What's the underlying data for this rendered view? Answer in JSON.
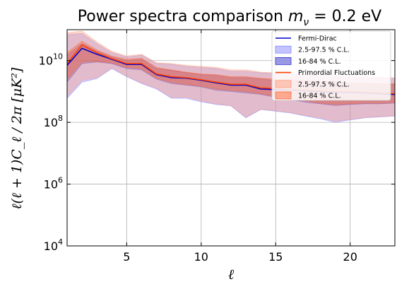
{
  "chart_data": {
    "type": "area",
    "title_prefix": "Power spectra comparison ",
    "title_math": {
      "symbol": "m",
      "subscript": "ν",
      "rest": " = 0.2 eV"
    },
    "xlabel": "ℓ",
    "ylabel": "ℓ(ℓ + 1)C_ℓ / 2π [μK²]",
    "x_scale": "linear",
    "y_scale": "log",
    "xlim": [
      1,
      23
    ],
    "ylim": [
      10000,
      100000000000
    ],
    "x_ticks": [
      5,
      10,
      15,
      20
    ],
    "x_tick_labels": [
      "5",
      "10",
      "15",
      "20"
    ],
    "y_ticks": [
      10000,
      1000000,
      100000000,
      10000000000
    ],
    "y_tick_labels": [
      {
        "base": "10",
        "exp": "4"
      },
      {
        "base": "10",
        "exp": "6"
      },
      {
        "base": "10",
        "exp": "8"
      },
      {
        "base": "10",
        "exp": "10"
      }
    ],
    "grid": true,
    "legend_position": "top-right",
    "x": [
      1,
      2,
      3,
      4,
      5,
      6,
      7,
      8,
      9,
      10,
      11,
      12,
      13,
      14,
      15,
      16,
      17,
      18,
      19,
      20,
      21,
      22,
      23
    ],
    "series": [
      {
        "name": "Fermi-Dirac",
        "color": "#0000cc",
        "line": [
          7000000000.0,
          25000000000.0,
          16000000000.0,
          11000000000.0,
          7500000000.0,
          7500000000.0,
          3500000000.0,
          2800000000.0,
          2700000000.0,
          2300000000.0,
          1900000000.0,
          1600000000.0,
          1600000000.0,
          1200000000.0,
          1150000000.0,
          1100000000.0,
          1050000000.0,
          1000000000.0,
          950000000.0,
          950000000.0,
          900000000.0,
          850000000.0,
          800000000.0
        ],
        "bands": [
          {
            "label": "2.5-97.5 % C.L.",
            "color": "#8888ff",
            "low": [
              600000000.0,
              2000000000.0,
              2600000000.0,
              5500000000.0,
              3000000000.0,
              1800000000.0,
              1200000000.0,
              600000000.0,
              600000000.0,
              460000000.0,
              380000000.0,
              340000000.0,
              140000000.0,
              260000000.0,
              230000000.0,
              200000000.0,
              160000000.0,
              130000000.0,
              100000000.0,
              120000000.0,
              140000000.0,
              150000000.0,
              160000000.0
            ],
            "high": [
              70000000000.0,
              75000000000.0,
              35000000000.0,
              18000000000.0,
              13000000000.0,
              15000000000.0,
              8000000000.0,
              7500000000.0,
              6500000000.0,
              6000000000.0,
              5500000000.0,
              4500000000.0,
              4500000000.0,
              4000000000.0,
              3800000000.0,
              3600000000.0,
              3300000000.0,
              3000000000.0,
              3000000000.0,
              2800000000.0,
              2800000000.0,
              2700000000.0,
              2600000000.0
            ]
          },
          {
            "label": "16-84 % C.L.",
            "color": "#3333cc",
            "low": [
              2000000000.0,
              8000000000.0,
              9000000000.0,
              8000000000.0,
              5500000000.0,
              5000000000.0,
              2500000000.0,
              1800000000.0,
              1600000000.0,
              1400000000.0,
              1100000000.0,
              1000000000.0,
              900000000.0,
              800000000.0,
              650000000.0,
              550000000.0,
              450000000.0,
              400000000.0,
              350000000.0,
              380000000.0,
              400000000.0,
              400000000.0,
              420000000.0
            ],
            "high": [
              15000000000.0,
              35000000000.0,
              20000000000.0,
              13000000000.0,
              10000000000.0,
              11000000000.0,
              5500000000.0,
              4800000000.0,
              4000000000.0,
              3500000000.0,
              3300000000.0,
              2800000000.0,
              2800000000.0,
              2500000000.0,
              2300000000.0,
              2200000000.0,
              2200000000.0,
              2000000000.0,
              2000000000.0,
              1800000000.0,
              1800000000.0,
              1700000000.0,
              1700000000.0
            ]
          }
        ]
      },
      {
        "name": "Primordial Fluctuations",
        "color": "#ff4000",
        "line": [
          8000000000.0,
          32000000000.0,
          18000000000.0,
          11500000000.0,
          8000000000.0,
          8000000000.0,
          3700000000.0,
          3000000000.0,
          2800000000.0,
          2400000000.0,
          2000000000.0,
          1700000000.0,
          1700000000.0,
          1300000000.0,
          1250000000.0,
          1150000000.0,
          1100000000.0,
          1050000000.0,
          1000000000.0,
          1000000000.0,
          950000000.0,
          900000000.0,
          850000000.0
        ],
        "bands": [
          {
            "label": "2.5-97.5 % C.L.",
            "color": "#ff9f80",
            "low": [
              700000000.0,
              2300000000.0,
              2800000000.0,
              5800000000.0,
              3200000000.0,
              1900000000.0,
              1300000000.0,
              650000000.0,
              650000000.0,
              500000000.0,
              400000000.0,
              350000000.0,
              150000000.0,
              270000000.0,
              240000000.0,
              210000000.0,
              170000000.0,
              140000000.0,
              110000000.0,
              125000000.0,
              145000000.0,
              155000000.0,
              165000000.0
            ],
            "high": [
              80000000000.0,
              90000000000.0,
              40000000000.0,
              20000000000.0,
              14000000000.0,
              16000000000.0,
              8500000000.0,
              8000000000.0,
              7000000000.0,
              6500000000.0,
              6000000000.0,
              5000000000.0,
              5000000000.0,
              4200000000.0,
              4000000000.0,
              3800000000.0,
              3500000000.0,
              3200000000.0,
              3200000000.0,
              3000000000.0,
              3000000000.0,
              2900000000.0,
              2800000000.0
            ]
          },
          {
            "label": "16-84 % C.L.",
            "color": "#ff6633",
            "low": [
              2500000000.0,
              9000000000.0,
              9500000000.0,
              8500000000.0,
              6000000000.0,
              5500000000.0,
              2700000000.0,
              2000000000.0,
              1700000000.0,
              1500000000.0,
              1200000000.0,
              1100000000.0,
              1000000000.0,
              850000000.0,
              700000000.0,
              600000000.0,
              500000000.0,
              420000000.0,
              380000000.0,
              400000000.0,
              420000000.0,
              420000000.0,
              440000000.0
            ],
            "high": [
              18000000000.0,
              42000000000.0,
              22000000000.0,
              14000000000.0,
              11000000000.0,
              12000000000.0,
              6000000000.0,
              5000000000.0,
              4200000000.0,
              3700000000.0,
              3500000000.0,
              3000000000.0,
              3000000000.0,
              2700000000.0,
              2500000000.0,
              2400000000.0,
              2300000000.0,
              2100000000.0,
              2100000000.0,
              1900000000.0,
              1900000000.0,
              1800000000.0,
              1800000000.0
            ]
          }
        ]
      }
    ]
  }
}
